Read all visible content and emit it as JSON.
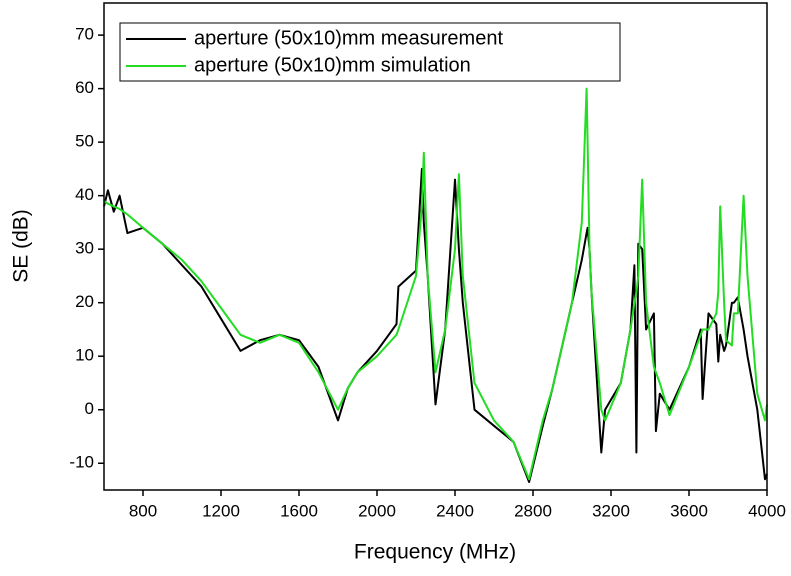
{
  "chart_data": {
    "type": "line",
    "x_label": "Frequency (MHz)",
    "y_label": "SE (dB)",
    "x": [
      600,
      620,
      650,
      680,
      720,
      800,
      900,
      1000,
      1100,
      1200,
      1300,
      1400,
      1500,
      1600,
      1700,
      1800,
      1850,
      1900,
      2000,
      2100,
      2110,
      2200,
      2230,
      2240,
      2260,
      2300,
      2350,
      2400,
      2420,
      2440,
      2500,
      2600,
      2700,
      2780,
      2850,
      2900,
      2950,
      3000,
      3050,
      3075,
      3080,
      3090,
      3100,
      3150,
      3170,
      3250,
      3300,
      3320,
      3330,
      3340,
      3360,
      3380,
      3420,
      3430,
      3450,
      3500,
      3600,
      3660,
      3670,
      3700,
      3740,
      3750,
      3760,
      3780,
      3790,
      3820,
      3830,
      3850,
      3860,
      3880,
      3900,
      3950,
      3990,
      4000
    ],
    "series": [
      {
        "name": "aperture (50x10)mm measurement",
        "color": "#000000",
        "values": [
          38,
          41,
          37,
          40,
          33,
          34,
          31,
          27,
          23,
          17,
          11,
          13,
          14,
          13,
          8,
          -2,
          4,
          7,
          11,
          16,
          23,
          26,
          45,
          35,
          25,
          1,
          15,
          43,
          30,
          20,
          0,
          -3,
          -6,
          -13.5,
          -3,
          4,
          12,
          20,
          28,
          33,
          34,
          30,
          22,
          -8,
          0,
          5,
          15,
          27,
          -8,
          31,
          30,
          15,
          18,
          -4,
          3,
          0,
          8,
          15,
          2,
          18,
          16,
          9,
          14,
          11,
          12,
          20,
          20,
          21,
          19,
          15,
          10,
          0,
          -13,
          -12
        ]
      },
      {
        "name": "aperture (50x10)mm simulation",
        "color": "#22dd22",
        "values": [
          39,
          38.5,
          38,
          37.5,
          36.5,
          34,
          31,
          28,
          24,
          19,
          14,
          12.5,
          14,
          12.5,
          7,
          0,
          4,
          7,
          10,
          14,
          15,
          25,
          38,
          48,
          25,
          7,
          15,
          30,
          44,
          25,
          5,
          -2,
          -6,
          -13,
          -2,
          4,
          12,
          20,
          35,
          60,
          50,
          30,
          22,
          0,
          -2,
          5,
          15,
          20,
          22,
          25,
          43,
          20,
          8,
          7,
          5,
          -1,
          8,
          14,
          15,
          15,
          18,
          22,
          38,
          20,
          13,
          12,
          18,
          18,
          25,
          40,
          25,
          3,
          -2,
          1
        ]
      }
    ],
    "xlim": [
      600,
      4000
    ],
    "xticks": [
      800,
      1200,
      1600,
      2000,
      2400,
      2800,
      3200,
      3600,
      4000
    ],
    "ylim": [
      -15,
      76
    ],
    "yticks": [
      -10,
      0,
      10,
      20,
      30,
      40,
      50,
      60,
      70
    ],
    "legend": "upper-left"
  }
}
